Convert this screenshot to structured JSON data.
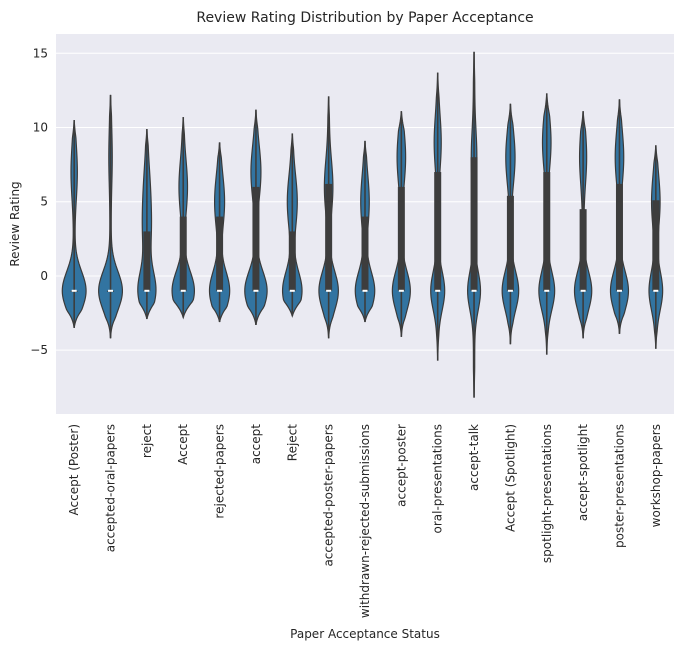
{
  "chart_data": {
    "type": "violin",
    "title": "Review Rating Distribution by Paper Acceptance",
    "xlabel": "Paper Acceptance Status",
    "ylabel": "Review Rating",
    "ylim": [
      -9.3,
      16.3
    ],
    "yticks": [
      -5,
      0,
      5,
      10,
      15
    ],
    "grid": true,
    "colors": {
      "violin": "#3274a1",
      "violin_edge": "#3a3a3a",
      "box": "#3d3d3d",
      "median": "#ffffff",
      "background": "#eaeaf2",
      "grid": "#ffffff"
    },
    "categories": [
      "Accept (Poster)",
      "accepted-oral-papers",
      "reject",
      "Accept",
      "rejected-papers",
      "accept",
      "Reject",
      "accepted-poster-papers",
      "withdrawn-rejected-submissions",
      "accept-poster",
      "oral-presentations",
      "accept-talk",
      "Accept (Spotlight)",
      "spotlight-presentations",
      "accept-spotlight",
      "poster-presentations",
      "workshop-papers"
    ],
    "distributions": [
      {
        "min": -3.5,
        "max": 10.5,
        "q1": -1,
        "median": -1,
        "q3": -1,
        "modes": [
          {
            "y": -1,
            "w": 0.62
          },
          {
            "y": 7,
            "w": 0.14
          }
        ]
      },
      {
        "min": -4.2,
        "max": 12.2,
        "q1": -1,
        "median": -1,
        "q3": -1,
        "modes": [
          {
            "y": -1,
            "w": 0.62
          },
          {
            "y": 8,
            "w": 0.06
          }
        ]
      },
      {
        "min": -2.9,
        "max": 9.9,
        "q1": -1,
        "median": -1,
        "q3": 3,
        "modes": [
          {
            "y": -1,
            "w": 0.45
          },
          {
            "y": 3,
            "w": 0.18
          },
          {
            "y": 6,
            "w": 0.12
          }
        ]
      },
      {
        "min": -2.8,
        "max": 10.7,
        "q1": -1,
        "median": -1,
        "q3": 4,
        "modes": [
          {
            "y": -1,
            "w": 0.58
          },
          {
            "y": 6,
            "w": 0.2
          }
        ]
      },
      {
        "min": -3.1,
        "max": 9.0,
        "q1": -1,
        "median": -1,
        "q3": 4,
        "modes": [
          {
            "y": -1,
            "w": 0.52
          },
          {
            "y": 5,
            "w": 0.24
          }
        ]
      },
      {
        "min": -3.3,
        "max": 11.2,
        "q1": -1,
        "median": -1,
        "q3": 6,
        "modes": [
          {
            "y": -1,
            "w": 0.58
          },
          {
            "y": 7,
            "w": 0.24
          }
        ]
      },
      {
        "min": -2.7,
        "max": 9.6,
        "q1": -1,
        "median": -1,
        "q3": 3,
        "modes": [
          {
            "y": -1,
            "w": 0.5
          },
          {
            "y": 5,
            "w": 0.24
          }
        ]
      },
      {
        "min": -4.2,
        "max": 12.1,
        "q1": -1,
        "median": -1,
        "q3": 6.2,
        "modes": [
          {
            "y": -1,
            "w": 0.5
          },
          {
            "y": 6,
            "w": 0.2
          }
        ]
      },
      {
        "min": -3.1,
        "max": 9.1,
        "q1": -1,
        "median": -1,
        "q3": 4,
        "modes": [
          {
            "y": -1,
            "w": 0.5
          },
          {
            "y": 5,
            "w": 0.2
          }
        ]
      },
      {
        "min": -4.1,
        "max": 11.1,
        "q1": -1,
        "median": -1,
        "q3": 6,
        "modes": [
          {
            "y": -1,
            "w": 0.46
          },
          {
            "y": 8,
            "w": 0.2
          }
        ]
      },
      {
        "min": -5.7,
        "max": 13.7,
        "q1": -1,
        "median": -1,
        "q3": 7,
        "modes": [
          {
            "y": -1,
            "w": 0.35
          },
          {
            "y": 9,
            "w": 0.16
          }
        ]
      },
      {
        "min": -8.2,
        "max": 15.1,
        "q1": -1,
        "median": -1,
        "q3": 8,
        "modes": [
          {
            "y": -1,
            "w": 0.32
          },
          {
            "y": 8,
            "w": 0.12
          }
        ]
      },
      {
        "min": -4.6,
        "max": 11.6,
        "q1": -1,
        "median": -1,
        "q3": 5.4,
        "modes": [
          {
            "y": -1,
            "w": 0.42
          },
          {
            "y": 8,
            "w": 0.22
          }
        ]
      },
      {
        "min": -5.3,
        "max": 12.3,
        "q1": -1,
        "median": -1,
        "q3": 7,
        "modes": [
          {
            "y": -1,
            "w": 0.4
          },
          {
            "y": 9,
            "w": 0.2
          }
        ]
      },
      {
        "min": -4.2,
        "max": 11.1,
        "q1": -1,
        "median": -1,
        "q3": 4.5,
        "modes": [
          {
            "y": -1,
            "w": 0.44
          },
          {
            "y": 8,
            "w": 0.16
          }
        ]
      },
      {
        "min": -3.9,
        "max": 11.9,
        "q1": -1,
        "median": -1,
        "q3": 6.2,
        "modes": [
          {
            "y": -1,
            "w": 0.46
          },
          {
            "y": 8,
            "w": 0.2
          }
        ]
      },
      {
        "min": -4.9,
        "max": 8.8,
        "q1": -1,
        "median": -1,
        "q3": 5.1,
        "modes": [
          {
            "y": -1,
            "w": 0.34
          },
          {
            "y": 5,
            "w": 0.2
          }
        ]
      }
    ]
  }
}
